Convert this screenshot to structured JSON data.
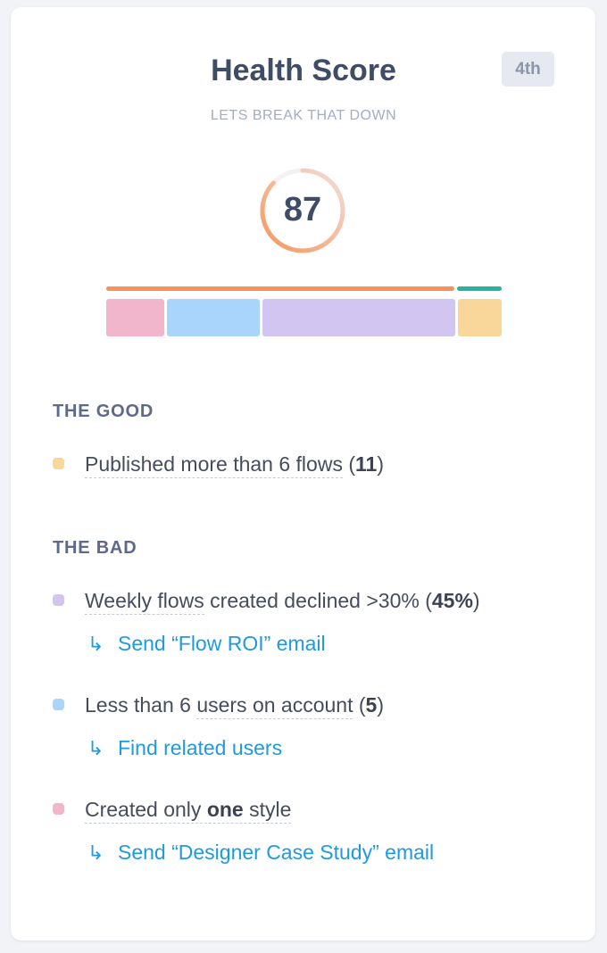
{
  "header": {
    "title": "Health Score",
    "subtitle": "LETS BREAK THAT DOWN",
    "rank": "4th"
  },
  "score": {
    "value": "87",
    "percent": 87
  },
  "breakdown": {
    "topbar": [
      {
        "share": 88.7,
        "color": "#f6925a"
      },
      {
        "share": 11.3,
        "color": "#24b59b"
      }
    ],
    "segments": [
      {
        "share": 14.9,
        "color": "#f2b6cc"
      },
      {
        "share": 24.0,
        "color": "#a9d4fc"
      },
      {
        "share": 49.9,
        "color": "#d3c5f2"
      },
      {
        "share": 11.2,
        "color": "#f9d69a"
      }
    ]
  },
  "good": {
    "heading": "THE GOOD",
    "items": [
      {
        "color": "#f9d69a",
        "before": "",
        "dotted": "Published more than 6 flows",
        "middle": " (",
        "strong": "11",
        "after": ")"
      }
    ]
  },
  "bad": {
    "heading": "THE BAD",
    "items": [
      {
        "color": "#d3c5f2",
        "before": "",
        "dotted": "Weekly flows",
        "middle": " created declined >30% (",
        "strong": "45%",
        "after": ")",
        "action_arrow": "↳",
        "action": "Send “Flow ROI” email"
      },
      {
        "color": "#a9d4fc",
        "before": "Less than 6 ",
        "dotted": "users on account",
        "middle": " (",
        "strong": "5",
        "after": ")",
        "action_arrow": "↳",
        "action": "Find related users"
      },
      {
        "color": "#f2b6cc",
        "before": "Created only ",
        "strong_first": "one",
        "dotted": " style",
        "action_arrow": "↳",
        "action": "Send “Designer Case Study” email"
      }
    ]
  }
}
